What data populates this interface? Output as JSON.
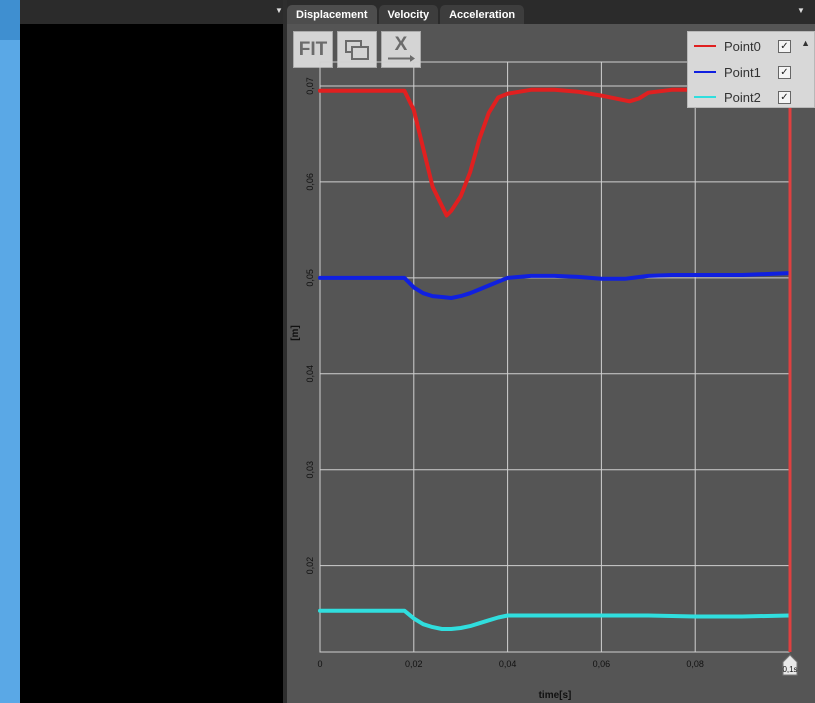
{
  "tabs": [
    {
      "label": "Displacement",
      "active": true
    },
    {
      "label": "Velocity",
      "active": false
    },
    {
      "label": "Acceleration",
      "active": false
    }
  ],
  "toolbar": {
    "fit_label": "FIT",
    "window_icon": "window-icon",
    "x_label": "X"
  },
  "legend": [
    {
      "name": "Point0",
      "color": "#e02020",
      "checked": true
    },
    {
      "name": "Point1",
      "color": "#1020e0",
      "checked": true
    },
    {
      "name": "Point2",
      "color": "#30dede",
      "checked": true
    }
  ],
  "chart_data": {
    "type": "line",
    "xlabel": "time[s]",
    "ylabel": "[m]",
    "xlim": [
      0,
      0.1
    ],
    "ylim": [
      0.011,
      0.0725
    ],
    "x_ticks": [
      "0",
      "0,02",
      "0,04",
      "0,06",
      "0,08"
    ],
    "y_ticks": [
      {
        "label": "0,02",
        "value": 0.02
      },
      {
        "label": "0,03",
        "value": 0.03
      },
      {
        "label": "0,04",
        "value": 0.04
      },
      {
        "label": "0,05",
        "value": 0.05
      },
      {
        "label": "0,06",
        "value": 0.06
      },
      {
        "label": "0,07",
        "value": 0.07
      }
    ],
    "cursor_label": "0,1s",
    "grid": true,
    "series": [
      {
        "name": "Point0",
        "color": "#e02020",
        "x": [
          0,
          0.018,
          0.02,
          0.022,
          0.024,
          0.026,
          0.027,
          0.028,
          0.03,
          0.032,
          0.034,
          0.036,
          0.038,
          0.04,
          0.045,
          0.05,
          0.055,
          0.06,
          0.064,
          0.066,
          0.068,
          0.07,
          0.075,
          0.08,
          0.1
        ],
        "y": [
          0.0695,
          0.0695,
          0.0675,
          0.0635,
          0.0595,
          0.0575,
          0.0565,
          0.057,
          0.0585,
          0.061,
          0.0645,
          0.0672,
          0.0688,
          0.0692,
          0.0696,
          0.0696,
          0.0694,
          0.069,
          0.0686,
          0.0684,
          0.0687,
          0.0693,
          0.0696,
          0.0696,
          0.0696
        ]
      },
      {
        "name": "Point1",
        "color": "#1020e0",
        "x": [
          0,
          0.018,
          0.02,
          0.022,
          0.024,
          0.026,
          0.028,
          0.03,
          0.032,
          0.034,
          0.036,
          0.038,
          0.04,
          0.045,
          0.05,
          0.055,
          0.06,
          0.065,
          0.07,
          0.075,
          0.08,
          0.09,
          0.1
        ],
        "y": [
          0.05,
          0.05,
          0.049,
          0.0484,
          0.0481,
          0.048,
          0.0479,
          0.0481,
          0.0484,
          0.0488,
          0.0492,
          0.0496,
          0.05,
          0.0502,
          0.0502,
          0.0501,
          0.0499,
          0.0499,
          0.0502,
          0.0503,
          0.0503,
          0.0503,
          0.0505
        ]
      },
      {
        "name": "Point2",
        "color": "#30dede",
        "x": [
          0,
          0.018,
          0.02,
          0.022,
          0.024,
          0.026,
          0.028,
          0.03,
          0.032,
          0.034,
          0.036,
          0.038,
          0.04,
          0.05,
          0.06,
          0.07,
          0.08,
          0.09,
          0.1
        ],
        "y": [
          0.0153,
          0.0153,
          0.0145,
          0.0139,
          0.0136,
          0.0134,
          0.0134,
          0.0135,
          0.0137,
          0.014,
          0.0143,
          0.0146,
          0.0148,
          0.0148,
          0.0148,
          0.0148,
          0.0147,
          0.0147,
          0.0148
        ]
      }
    ]
  }
}
